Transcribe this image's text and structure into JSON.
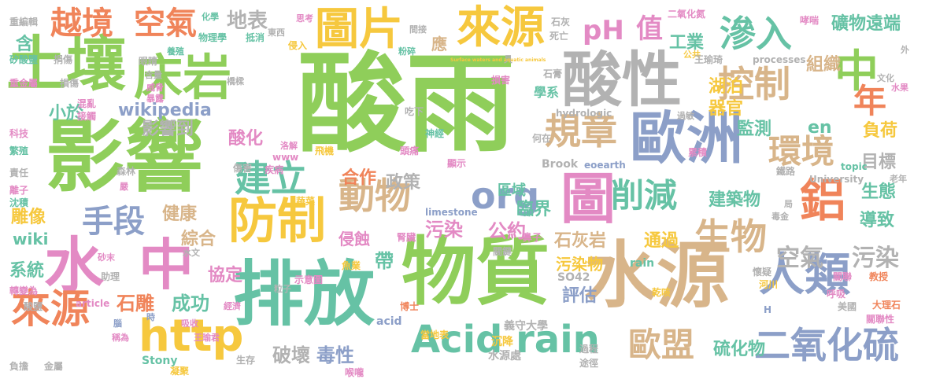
{
  "palette": {
    "green": "#8fce5a",
    "tan": "#d8b58a",
    "blue": "#8c9fc8",
    "orange": "#f0845a",
    "yellow": "#f6c83e",
    "pink": "#e38ac4",
    "gray": "#b2b2b2",
    "teal": "#66c2a5"
  },
  "words": [
    {
      "text": "酸雨",
      "color": "green"
    },
    {
      "text": "影響",
      "color": "green"
    },
    {
      "text": "物質",
      "color": "green"
    },
    {
      "text": "水源",
      "color": "tan"
    },
    {
      "text": "排放",
      "color": "teal"
    },
    {
      "text": "歐洲",
      "color": "blue"
    },
    {
      "text": "酸性",
      "color": "gray"
    },
    {
      "text": "土壤",
      "color": "green"
    },
    {
      "text": "床岩",
      "color": "green"
    },
    {
      "text": "來源",
      "color": "yellow"
    },
    {
      "text": "圖片",
      "color": "yellow"
    },
    {
      "text": "圖",
      "color": "pink"
    },
    {
      "text": "水",
      "color": "pink"
    },
    {
      "text": "中",
      "color": "pink"
    },
    {
      "text": "中",
      "color": "green"
    },
    {
      "text": "防制",
      "color": "yellow"
    },
    {
      "text": "人類",
      "color": "blue"
    },
    {
      "text": "鋁",
      "color": "orange"
    },
    {
      "text": "來源",
      "color": "orange"
    },
    {
      "text": "http",
      "color": "yellow"
    },
    {
      "text": "Acid rain",
      "color": "teal"
    },
    {
      "text": "二氧化硫",
      "color": "blue"
    },
    {
      "text": "生物",
      "color": "tan"
    },
    {
      "text": "動物",
      "color": "tan"
    },
    {
      "text": "建立",
      "color": "teal"
    },
    {
      "text": "控制",
      "color": "tan"
    },
    {
      "text": "滲入",
      "color": "teal"
    },
    {
      "text": "規章",
      "color": "tan"
    },
    {
      "text": "環境",
      "color": "tan"
    },
    {
      "text": "削減",
      "color": "teal"
    },
    {
      "text": "越境",
      "color": "orange"
    },
    {
      "text": "空氣",
      "color": "orange"
    },
    {
      "text": "org",
      "color": "blue"
    },
    {
      "text": "歐盟",
      "color": "tan"
    },
    {
      "text": "手段",
      "color": "blue"
    },
    {
      "text": "年",
      "color": "orange"
    },
    {
      "text": "pH",
      "color": "pink"
    },
    {
      "text": "值",
      "color": "pink"
    },
    {
      "text": "空氣",
      "color": "gray"
    },
    {
      "text": "污染",
      "color": "gray"
    },
    {
      "text": "地表",
      "color": "gray"
    },
    {
      "text": "wikipedia",
      "color": "blue"
    },
    {
      "text": "影響到",
      "color": "gray"
    },
    {
      "text": "小於",
      "color": "teal"
    },
    {
      "text": "工業",
      "color": "teal"
    },
    {
      "text": "礦物",
      "color": "teal"
    },
    {
      "text": "組織",
      "color": "tan"
    },
    {
      "text": "遠端",
      "color": "teal"
    },
    {
      "text": "器官",
      "color": "yellow"
    },
    {
      "text": "湖泊",
      "color": "yellow"
    },
    {
      "text": "監測",
      "color": "teal"
    },
    {
      "text": "en",
      "color": "teal"
    },
    {
      "text": "負荷",
      "color": "yellow"
    },
    {
      "text": "目標",
      "color": "gray"
    },
    {
      "text": "破壞",
      "color": "gray"
    },
    {
      "text": "毒性",
      "color": "blue"
    },
    {
      "text": "成功",
      "color": "teal"
    },
    {
      "text": "石雕",
      "color": "orange"
    },
    {
      "text": "協定",
      "color": "pink"
    },
    {
      "text": "系統",
      "color": "teal"
    },
    {
      "text": "wiki",
      "color": "teal"
    },
    {
      "text": "雕像",
      "color": "yellow"
    },
    {
      "text": "健康",
      "color": "tan"
    },
    {
      "text": "綜合",
      "color": "tan"
    },
    {
      "text": "酸化",
      "color": "pink"
    },
    {
      "text": "政策",
      "color": "gray"
    },
    {
      "text": "合作",
      "color": "orange"
    },
    {
      "text": "區域",
      "color": "teal"
    },
    {
      "text": "臨界",
      "color": "teal"
    },
    {
      "text": "公約",
      "color": "pink"
    },
    {
      "text": "污染",
      "color": "pink"
    },
    {
      "text": "石灰岩",
      "color": "tan"
    },
    {
      "text": "通過",
      "color": "yellow"
    },
    {
      "text": "建築物",
      "color": "teal"
    },
    {
      "text": "生態",
      "color": "teal"
    },
    {
      "text": "導致",
      "color": "teal"
    },
    {
      "text": "污染物",
      "color": "yellow"
    },
    {
      "text": "侵蝕",
      "color": "pink"
    },
    {
      "text": "帶",
      "color": "teal"
    },
    {
      "text": "評估",
      "color": "blue"
    },
    {
      "text": "硫化物",
      "color": "teal"
    },
    {
      "text": "含",
      "color": "teal"
    },
    {
      "text": "應",
      "color": "tan"
    },
    {
      "text": "學系",
      "color": "teal"
    },
    {
      "text": "hydrologic",
      "color": "gray"
    },
    {
      "text": "limestone",
      "color": "blue"
    },
    {
      "text": "Stony",
      "color": "teal"
    },
    {
      "text": "Brook",
      "color": "gray"
    },
    {
      "text": "eoearth",
      "color": "blue"
    },
    {
      "text": "University",
      "color": "gray"
    },
    {
      "text": "rain",
      "color": "teal"
    },
    {
      "text": "SO42",
      "color": "gray"
    },
    {
      "text": "acid",
      "color": "blue"
    },
    {
      "text": "article",
      "color": "pink"
    },
    {
      "text": "topic",
      "color": "teal"
    },
    {
      "text": "processes",
      "color": "gray"
    },
    {
      "text": "www",
      "color": "pink"
    },
    {
      "text": "義守大學",
      "color": "gray"
    },
    {
      "text": "當地表",
      "color": "yellow"
    },
    {
      "text": "博士",
      "color": "orange"
    },
    {
      "text": "水源處",
      "color": "gray"
    },
    {
      "text": "沉降",
      "color": "yellow"
    },
    {
      "text": "過程",
      "color": "gray"
    },
    {
      "text": "途徑",
      "color": "gray"
    },
    {
      "text": "生存",
      "color": "gray"
    },
    {
      "text": "凝聚",
      "color": "yellow"
    },
    {
      "text": "喉嚨",
      "color": "pink"
    },
    {
      "text": "助理",
      "color": "gray"
    },
    {
      "text": "傷害",
      "color": "gray"
    },
    {
      "text": "疾病",
      "color": "pink"
    },
    {
      "text": "森林",
      "color": "gray"
    },
    {
      "text": "蔬菜",
      "color": "yellow"
    },
    {
      "text": "魚業",
      "color": "yellow"
    },
    {
      "text": "腎臟",
      "color": "pink"
    },
    {
      "text": "鼻子",
      "color": "pink"
    },
    {
      "text": "關鍵",
      "color": "gray"
    },
    {
      "text": "示意圖",
      "color": "pink"
    },
    {
      "text": "乾咳",
      "color": "yellow"
    },
    {
      "text": "呼吸",
      "color": "pink"
    },
    {
      "text": "美國",
      "color": "gray"
    },
    {
      "text": "教授",
      "color": "orange"
    },
    {
      "text": "關聯",
      "color": "pink"
    },
    {
      "text": "河川",
      "color": "yellow"
    },
    {
      "text": "懷疑",
      "color": "gray"
    },
    {
      "text": "大理石",
      "color": "orange"
    },
    {
      "text": "關聯性",
      "color": "pink"
    },
    {
      "text": "老年",
      "color": "gray"
    },
    {
      "text": "重金屬",
      "color": "pink"
    },
    {
      "text": "重編輯",
      "color": "gray"
    },
    {
      "text": "矽酸鹽",
      "color": "teal"
    },
    {
      "text": "眼睛",
      "color": "gray"
    },
    {
      "text": "損傷",
      "color": "gray"
    },
    {
      "text": "混亂",
      "color": "pink"
    },
    {
      "text": "接觸",
      "color": "pink"
    },
    {
      "text": "科技",
      "color": "pink"
    },
    {
      "text": "繁殖",
      "color": "teal"
    },
    {
      "text": "責任",
      "color": "gray"
    },
    {
      "text": "離子",
      "color": "pink"
    },
    {
      "text": "沈積",
      "color": "teal"
    },
    {
      "text": "轉變為",
      "color": "pink"
    },
    {
      "text": "酸鹽",
      "color": "gray"
    },
    {
      "text": "負擔",
      "color": "gray"
    },
    {
      "text": "金屬",
      "color": "gray"
    },
    {
      "text": "物理學",
      "color": "teal"
    },
    {
      "text": "抵消",
      "color": "teal"
    },
    {
      "text": "侵入",
      "color": "yellow"
    },
    {
      "text": "死亡",
      "color": "gray"
    },
    {
      "text": "石灰",
      "color": "gray"
    },
    {
      "text": "公共",
      "color": "yellow"
    },
    {
      "text": "二氧化氮",
      "color": "pink"
    },
    {
      "text": "哮喘",
      "color": "pink"
    },
    {
      "text": "王瑜琦",
      "color": "gray"
    },
    {
      "text": "石膏",
      "color": "gray"
    },
    {
      "text": "損害",
      "color": "pink"
    },
    {
      "text": "何在",
      "color": "gray"
    },
    {
      "text": "顯示",
      "color": "pink"
    },
    {
      "text": "飛機",
      "color": "yellow"
    },
    {
      "text": "頭痛",
      "color": "pink"
    },
    {
      "text": "神經",
      "color": "teal"
    },
    {
      "text": "吃下",
      "color": "gray"
    },
    {
      "text": "累積",
      "color": "pink"
    },
    {
      "text": "過敏",
      "color": "gray"
    },
    {
      "text": "鐵路",
      "color": "gray"
    },
    {
      "text": "毒金",
      "color": "gray"
    },
    {
      "text": "文化",
      "color": "gray"
    },
    {
      "text": "水果",
      "color": "pink"
    },
    {
      "text": "捐傷",
      "color": "gray"
    },
    {
      "text": "含量",
      "color": "gray"
    },
    {
      "text": "養殖",
      "color": "teal"
    },
    {
      "text": "威脅",
      "color": "pink"
    },
    {
      "text": "暴露",
      "color": "pink"
    },
    {
      "text": "橋樑",
      "color": "gray"
    },
    {
      "text": "化學",
      "color": "teal"
    },
    {
      "text": "思考",
      "color": "pink"
    },
    {
      "text": "間接",
      "color": "gray"
    },
    {
      "text": "粉碎",
      "color": "teal"
    },
    {
      "text": "王瑜君",
      "color": "pink"
    },
    {
      "text": "經濟",
      "color": "pink"
    },
    {
      "text": "吸收",
      "color": "pink"
    },
    {
      "text": "水文",
      "color": "gray"
    },
    {
      "text": "砂末",
      "color": "pink"
    },
    {
      "text": "粒子",
      "color": "gray"
    },
    {
      "text": "稱為",
      "color": "pink"
    },
    {
      "text": "時",
      "color": "blue"
    },
    {
      "text": "腦",
      "color": "blue"
    },
    {
      "text": "嚴",
      "color": "pink"
    },
    {
      "text": "洛解",
      "color": "pink"
    },
    {
      "text": "東西",
      "color": "gray"
    },
    {
      "text": "具",
      "color": "gray"
    },
    {
      "text": "外",
      "color": "gray"
    },
    {
      "text": "H",
      "color": "blue"
    },
    {
      "text": "局",
      "color": "gray"
    },
    {
      "text": "Surface waters and aquatic animals",
      "color": "yellow"
    }
  ]
}
